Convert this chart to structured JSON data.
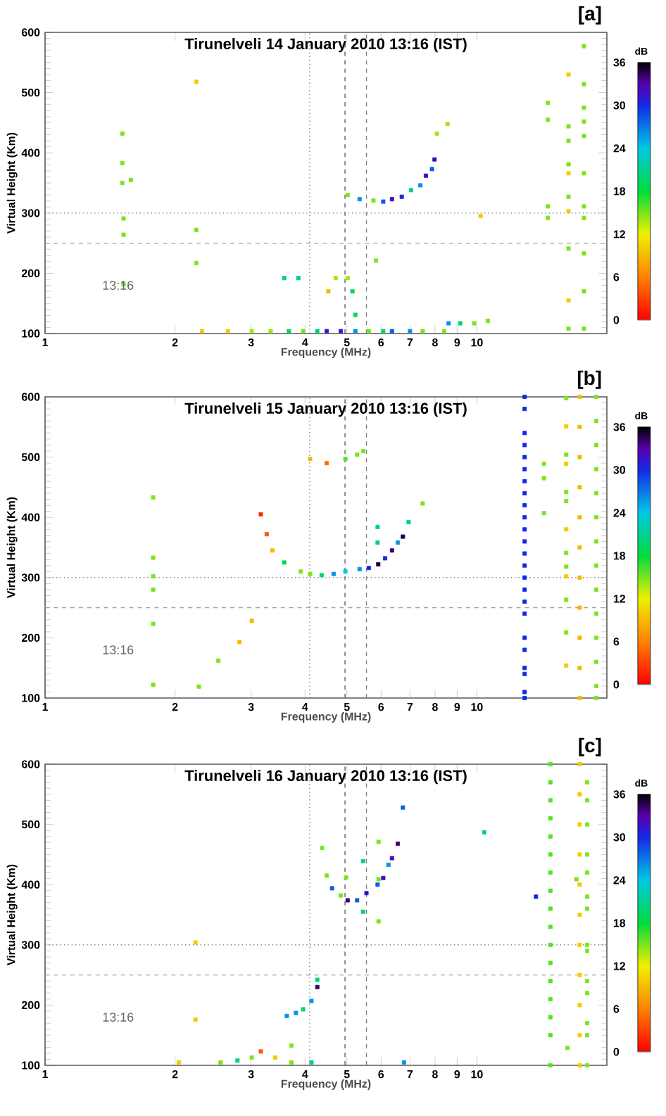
{
  "chart_data": [
    {
      "type": "scatter",
      "title": "Tirunelveli 14 January 2010 13:16 (IST)",
      "xlabel": "Frequency (MHz)",
      "ylabel": "Virtual Height (Km)",
      "clabel": "dB",
      "annotations": [
        "13:16",
        "[a]"
      ],
      "log": "x",
      "marker": "square",
      "x": [
        5.02,
        5.35,
        5.76,
        6.07,
        6.36,
        6.7,
        7.04,
        7.4,
        7.62,
        7.87,
        7.98,
        8.08,
        8.55,
        1.51,
        1.51,
        1.51,
        1.58,
        1.52,
        1.52,
        1.52,
        2.24,
        2.24,
        2.24,
        3.58,
        3.86,
        4.71,
        5.02,
        5.15,
        5.23,
        4.53,
        5.84,
        2.31,
        2.65,
        3.01,
        3.33,
        3.67,
        3.96,
        4.27,
        4.49,
        4.84,
        5.23,
        5.62,
        6.07,
        6.36,
        7.0,
        7.49,
        8.4,
        8.6,
        9.15,
        9.86,
        10.6,
        14.6,
        14.6,
        14.6,
        14.6,
        10.2,
        16.3,
        16.3,
        16.3,
        16.3,
        16.3,
        16.3,
        16.3,
        16.3,
        16.3,
        16.3,
        17.7,
        17.7,
        17.7,
        17.7,
        17.7,
        17.7,
        17.7,
        17.7,
        17.7,
        17.7,
        17.7
      ],
      "values": [
        330,
        323,
        321,
        319,
        323,
        327,
        338,
        346,
        362,
        373,
        389,
        432,
        448,
        432,
        383,
        350,
        355,
        291,
        264,
        182,
        518,
        272,
        217,
        192,
        192,
        192,
        192,
        170,
        131,
        170,
        221,
        104,
        104,
        104,
        104,
        104,
        104,
        104,
        104,
        104,
        104,
        104,
        104,
        104,
        104,
        104,
        104,
        117,
        117,
        117,
        121,
        311,
        292,
        483,
        455,
        295,
        530,
        444,
        420,
        381,
        366,
        327,
        303,
        241,
        155,
        108,
        577,
        514,
        475,
        452,
        428,
        366,
        311,
        292,
        233,
        170,
        108
      ],
      "cvalues": [
        15,
        26,
        15,
        28,
        32,
        30,
        20,
        26,
        32,
        28,
        32,
        14,
        14,
        15,
        15,
        15,
        15,
        15,
        15,
        15,
        10,
        15,
        15,
        20,
        20,
        14,
        14,
        19,
        19,
        9,
        15,
        10,
        10,
        14,
        14,
        20,
        15,
        20,
        31,
        31,
        26,
        15,
        20,
        28,
        26,
        15,
        15,
        26,
        20,
        15,
        15,
        15,
        15,
        15,
        15,
        10,
        10,
        15,
        15,
        15,
        10,
        15,
        10,
        15,
        10,
        15,
        15,
        15,
        15,
        15,
        15,
        15,
        15,
        15,
        15,
        15,
        15
      ],
      "xlim": [
        1,
        20
      ],
      "ylim": [
        100,
        600
      ],
      "xticks": [
        1,
        2,
        3,
        4,
        5,
        6,
        7,
        8,
        9,
        10
      ],
      "yticks": [
        100,
        200,
        300,
        400,
        500,
        600
      ],
      "clim": [
        0,
        36
      ],
      "cticks": [
        0,
        6,
        12,
        18,
        24,
        30,
        36
      ],
      "ref_lines": [
        {
          "axis": "x",
          "value": 4.1,
          "line_style": "dotted",
          "color": "#808080"
        },
        {
          "axis": "x",
          "value": 4.95,
          "line_style": "dashed",
          "color": "#606060"
        },
        {
          "axis": "x",
          "value": 5.55,
          "line_style": "dashed",
          "color": "#808080"
        },
        {
          "axis": "y",
          "value": 300,
          "line_style": "dotted",
          "color": "#808080"
        },
        {
          "axis": "y",
          "value": 250,
          "line_style": "dashed",
          "color": "#a0a0a0"
        }
      ]
    },
    {
      "type": "scatter",
      "title": "Tirunelveli 15 January 2010 13:16 (IST)",
      "xlabel": "Frequency (MHz)",
      "ylabel": "Virtual Height (Km)",
      "clabel": "dB",
      "annotations": [
        "13:16",
        "[b]"
      ],
      "log": "x",
      "marker": "square",
      "x": [
        3.16,
        3.26,
        3.36,
        3.58,
        3.91,
        4.11,
        4.37,
        4.66,
        4.96,
        5.35,
        5.62,
        5.91,
        6.13,
        6.36,
        6.56,
        6.74,
        6.95,
        7.49,
        4.11,
        4.49,
        4.96,
        5.28,
        5.46,
        3.01,
        2.82,
        2.52,
        2.27,
        1.78,
        1.78,
        1.78,
        1.78,
        1.78,
        1.78,
        5.89,
        5.89,
        12.9,
        12.9,
        12.9,
        12.9,
        12.9,
        12.9,
        12.9,
        12.9,
        12.9,
        12.9,
        12.9,
        12.9,
        12.9,
        12.9,
        12.9,
        12.9,
        12.9,
        12.9,
        12.9,
        12.9,
        12.9,
        12.9,
        12.9,
        12.9,
        14.3,
        14.3,
        14.3,
        16.1,
        16.1,
        16.1,
        16.1,
        16.1,
        16.1,
        16.1,
        16.1,
        16.1,
        16.1,
        16.1,
        16.1,
        16.1,
        17.3,
        17.3,
        17.3,
        17.3,
        17.3,
        17.3,
        17.3,
        17.3,
        17.3,
        17.3,
        17.3,
        18.9,
        18.9,
        18.9,
        18.9,
        18.9,
        18.9,
        18.9,
        18.9,
        18.9,
        18.9,
        18.9,
        18.9,
        18.9,
        18.9
      ],
      "values": [
        405,
        372,
        345,
        325,
        310,
        306,
        304,
        306,
        310,
        314,
        316,
        322,
        332,
        345,
        358,
        368,
        392,
        423,
        497,
        490,
        497,
        504,
        510,
        228,
        193,
        162,
        119,
        433,
        333,
        302,
        280,
        223,
        122,
        384,
        358,
        600,
        580,
        540,
        520,
        500,
        480,
        460,
        440,
        420,
        400,
        380,
        360,
        340,
        320,
        300,
        280,
        260,
        240,
        200,
        180,
        150,
        140,
        110,
        100,
        489,
        465,
        407,
        598,
        551,
        504,
        489,
        442,
        427,
        380,
        341,
        318,
        302,
        263,
        209,
        154,
        600,
        550,
        500,
        450,
        400,
        350,
        300,
        250,
        200,
        150,
        100,
        600,
        560,
        520,
        480,
        440,
        400,
        360,
        320,
        280,
        240,
        200,
        160,
        120,
        100
      ],
      "cvalues": [
        2,
        4,
        9,
        19,
        15,
        15,
        20,
        26,
        24,
        26,
        30,
        35,
        30,
        34,
        26,
        35,
        20,
        15,
        9,
        5,
        16,
        15,
        15,
        9,
        9,
        15,
        15,
        15,
        15,
        15,
        15,
        15,
        15,
        20,
        20,
        30,
        30,
        30,
        30,
        30,
        30,
        30,
        30,
        30,
        30,
        30,
        30,
        30,
        30,
        30,
        30,
        30,
        30,
        30,
        30,
        30,
        30,
        30,
        30,
        15,
        15,
        15,
        15,
        10,
        15,
        10,
        15,
        15,
        10,
        15,
        15,
        10,
        15,
        15,
        10,
        9,
        9,
        9,
        9,
        9,
        9,
        9,
        9,
        9,
        9,
        9,
        15,
        15,
        15,
        15,
        15,
        15,
        15,
        15,
        15,
        15,
        15,
        15,
        15,
        15
      ],
      "xlim": [
        1,
        20
      ],
      "ylim": [
        100,
        600
      ],
      "xticks": [
        1,
        2,
        3,
        4,
        5,
        6,
        7,
        8,
        9,
        10
      ],
      "yticks": [
        100,
        200,
        300,
        400,
        500,
        600
      ],
      "clim": [
        0,
        36
      ],
      "cticks": [
        0,
        6,
        12,
        18,
        24,
        30,
        36
      ],
      "ref_lines": [
        {
          "axis": "x",
          "value": 4.1,
          "line_style": "dotted",
          "color": "#808080"
        },
        {
          "axis": "x",
          "value": 4.95,
          "line_style": "dashed",
          "color": "#606060"
        },
        {
          "axis": "x",
          "value": 5.55,
          "line_style": "dashed",
          "color": "#808080"
        },
        {
          "axis": "y",
          "value": 300,
          "line_style": "dotted",
          "color": "#808080"
        },
        {
          "axis": "y",
          "value": 250,
          "line_style": "dashed",
          "color": "#a0a0a0"
        }
      ]
    },
    {
      "type": "scatter",
      "title": "Tirunelveli 16 January 2010 13:16 (IST)",
      "xlabel": "Frequency (MHz)",
      "ylabel": "Virtual Height (Km)",
      "clabel": "dB",
      "annotations": [
        "13:16",
        "[c]"
      ],
      "log": "x",
      "marker": "square",
      "x": [
        3.63,
        3.81,
        3.96,
        4.14,
        4.27,
        4.27,
        4.38,
        4.49,
        4.62,
        4.84,
        5.02,
        5.28,
        5.55,
        5.89,
        6.07,
        6.24,
        6.36,
        6.56,
        6.74,
        5.45,
        5.45,
        5.92,
        5.92,
        5.92,
        4.98,
        2.55,
        2.79,
        3.01,
        3.16,
        3.41,
        3.72,
        3.72,
        4.14,
        6.78,
        2.04,
        2.23,
        2.23,
        10.4,
        13.7,
        14.8,
        14.8,
        14.8,
        14.8,
        14.8,
        14.8,
        14.8,
        14.8,
        14.8,
        14.8,
        14.8,
        14.8,
        14.8,
        14.8,
        14.8,
        14.8,
        14.8,
        17.3,
        17.3,
        17.3,
        17.3,
        17.3,
        17.3,
        17.3,
        17.3,
        17.3,
        17.3,
        17.3,
        18.0,
        18.0,
        18.0,
        18.0,
        18.0,
        18.0,
        18.0,
        18.0,
        18.0,
        18.0,
        18.0,
        18.0,
        18.0,
        18.0,
        17.0,
        16.2
      ],
      "values": [
        182,
        187,
        193,
        207,
        230,
        242,
        461,
        415,
        394,
        382,
        374,
        374,
        386,
        400,
        411,
        433,
        444,
        468,
        528,
        439,
        355,
        471,
        409,
        339,
        412,
        105,
        108,
        113,
        123,
        113,
        133,
        105,
        105,
        105,
        105,
        304,
        176,
        487,
        380,
        600,
        570,
        540,
        510,
        480,
        450,
        420,
        390,
        360,
        330,
        300,
        270,
        240,
        210,
        180,
        150,
        100,
        600,
        550,
        500,
        450,
        400,
        350,
        300,
        250,
        200,
        150,
        100,
        570,
        540,
        500,
        450,
        420,
        380,
        360,
        300,
        290,
        240,
        220,
        170,
        150,
        100,
        409,
        129
      ],
      "cvalues": [
        26,
        26,
        20,
        26,
        34,
        20,
        15,
        15,
        28,
        15,
        34,
        28,
        32,
        28,
        32,
        26,
        32,
        34,
        28,
        20,
        20,
        15,
        15,
        15,
        15,
        15,
        20,
        15,
        4,
        10,
        15,
        15,
        20,
        26,
        10,
        10,
        10,
        20,
        30,
        16,
        16,
        16,
        16,
        16,
        16,
        16,
        16,
        16,
        16,
        16,
        16,
        16,
        16,
        16,
        16,
        16,
        10,
        10,
        10,
        10,
        10,
        10,
        10,
        10,
        10,
        10,
        10,
        15,
        15,
        15,
        15,
        15,
        15,
        15,
        15,
        15,
        15,
        15,
        15,
        15,
        15,
        15,
        15
      ],
      "xlim": [
        1,
        20
      ],
      "ylim": [
        100,
        600
      ],
      "xticks": [
        1,
        2,
        3,
        4,
        5,
        6,
        7,
        8,
        9,
        10
      ],
      "yticks": [
        100,
        200,
        300,
        400,
        500,
        600
      ],
      "clim": [
        0,
        36
      ],
      "cticks": [
        0,
        6,
        12,
        18,
        24,
        30,
        36
      ],
      "ref_lines": [
        {
          "axis": "x",
          "value": 4.1,
          "line_style": "dotted",
          "color": "#808080"
        },
        {
          "axis": "x",
          "value": 4.95,
          "line_style": "dashed",
          "color": "#606060"
        },
        {
          "axis": "x",
          "value": 5.55,
          "line_style": "dashed",
          "color": "#808080"
        },
        {
          "axis": "y",
          "value": 300,
          "line_style": "dotted",
          "color": "#808080"
        },
        {
          "axis": "y",
          "value": 250,
          "line_style": "dashed",
          "color": "#a0a0a0"
        }
      ]
    }
  ]
}
